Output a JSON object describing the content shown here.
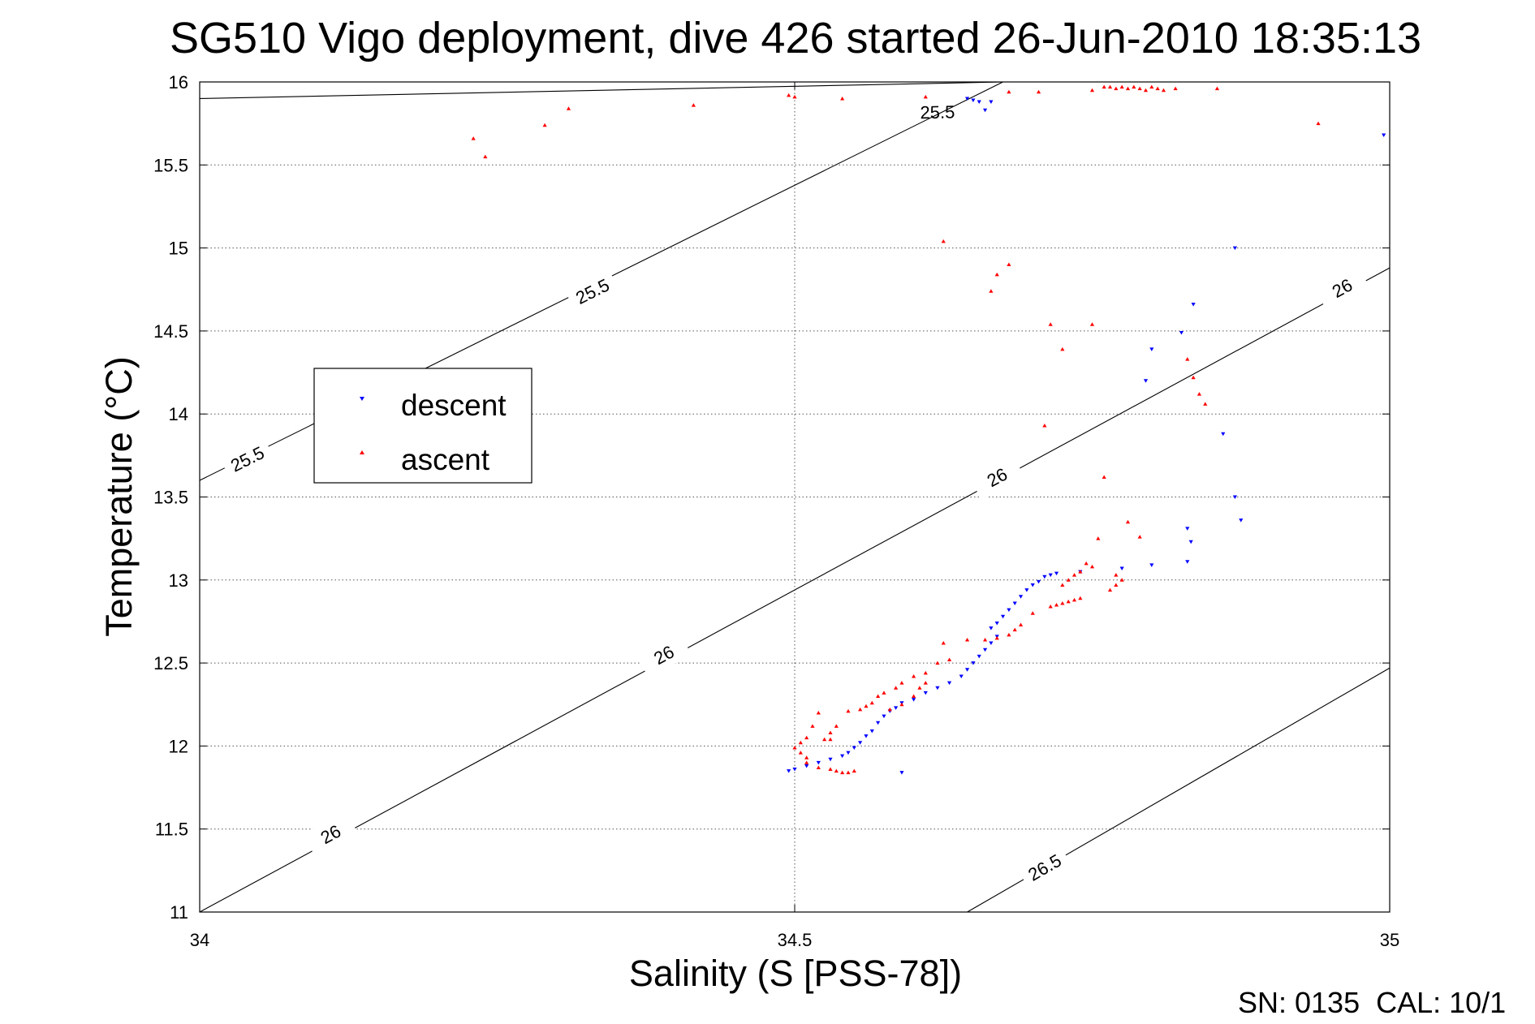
{
  "chart_data": {
    "type": "scatter",
    "title": "SG510 Vigo deployment, dive 426 started 26-Jun-2010 18:35:13",
    "xlabel": "Salinity (S [PSS-78])",
    "ylabel": "Temperature (°C)",
    "xlim": [
      34,
      35
    ],
    "ylim": [
      11,
      16
    ],
    "xticks": [
      "34",
      "34.5",
      "35"
    ],
    "yticks": [
      "11",
      "11.5",
      "12",
      "12.5",
      "13",
      "13.5",
      "14",
      "14.5",
      "15",
      "15.5",
      "16"
    ],
    "grid": "dotted, major ticks",
    "legend_position": "middle-left",
    "footer": "SN: 0135  CAL: 10/1",
    "density_contours": [
      {
        "label": "25.5",
        "start": [
          34.0,
          15.9
        ],
        "end": [
          34.675,
          16.0
        ],
        "labels_at": [
          [
            34.62,
            15.82
          ]
        ]
      },
      {
        "label": "25.5",
        "start": [
          34.0,
          13.6
        ],
        "end": [
          34.675,
          16.0
        ],
        "labels_at": [
          [
            34.04,
            13.73
          ],
          [
            34.33,
            14.74
          ]
        ]
      },
      {
        "label": "26",
        "start": [
          34.0,
          11.0
        ],
        "end": [
          35.0,
          14.88
        ],
        "labels_at": [
          [
            34.11,
            11.47
          ],
          [
            34.39,
            12.55
          ],
          [
            34.67,
            13.62
          ],
          [
            34.96,
            14.76
          ]
        ]
      },
      {
        "label": "26.5",
        "start": [
          34.645,
          11.0
        ],
        "end": [
          35.0,
          12.47
        ],
        "labels_at": [
          [
            34.71,
            11.27
          ]
        ]
      }
    ],
    "series": [
      {
        "name": "descent",
        "color": "#0000ff",
        "marker": "triangle-down",
        "points": [
          [
            34.645,
            15.9
          ],
          [
            34.65,
            15.89
          ],
          [
            34.655,
            15.88
          ],
          [
            34.66,
            15.83
          ],
          [
            34.665,
            15.88
          ],
          [
            34.995,
            15.68
          ],
          [
            34.87,
            15.0
          ],
          [
            34.835,
            14.66
          ],
          [
            34.825,
            14.49
          ],
          [
            34.8,
            14.39
          ],
          [
            34.795,
            14.2
          ],
          [
            34.86,
            13.88
          ],
          [
            34.87,
            13.5
          ],
          [
            34.875,
            13.36
          ],
          [
            34.83,
            13.31
          ],
          [
            34.833,
            13.23
          ],
          [
            34.83,
            13.11
          ],
          [
            34.8,
            13.09
          ],
          [
            34.775,
            13.07
          ],
          [
            34.74,
            13.05
          ],
          [
            34.72,
            13.04
          ],
          [
            34.715,
            13.03
          ],
          [
            34.71,
            13.02
          ],
          [
            34.705,
            12.99
          ],
          [
            34.7,
            12.97
          ],
          [
            34.695,
            12.94
          ],
          [
            34.69,
            12.9
          ],
          [
            34.685,
            12.86
          ],
          [
            34.68,
            12.82
          ],
          [
            34.675,
            12.78
          ],
          [
            34.67,
            12.74
          ],
          [
            34.665,
            12.71
          ],
          [
            34.67,
            12.66
          ],
          [
            34.665,
            12.62
          ],
          [
            34.66,
            12.58
          ],
          [
            34.655,
            12.54
          ],
          [
            34.65,
            12.5
          ],
          [
            34.645,
            12.46
          ],
          [
            34.64,
            12.42
          ],
          [
            34.63,
            12.38
          ],
          [
            34.62,
            12.35
          ],
          [
            34.61,
            12.32
          ],
          [
            34.6,
            12.28
          ],
          [
            34.59,
            12.26
          ],
          [
            34.585,
            12.23
          ],
          [
            34.58,
            12.21
          ],
          [
            34.575,
            12.18
          ],
          [
            34.57,
            12.14
          ],
          [
            34.565,
            12.09
          ],
          [
            34.56,
            12.06
          ],
          [
            34.555,
            12.02
          ],
          [
            34.55,
            11.99
          ],
          [
            34.545,
            11.96
          ],
          [
            34.54,
            11.94
          ],
          [
            34.53,
            11.92
          ],
          [
            34.52,
            11.9
          ],
          [
            34.51,
            11.88
          ],
          [
            34.5,
            11.86
          ],
          [
            34.495,
            11.85
          ],
          [
            34.59,
            11.84
          ]
        ]
      },
      {
        "name": "ascent",
        "color": "#ff0000",
        "marker": "triangle-up",
        "points": [
          [
            34.23,
            15.66
          ],
          [
            34.24,
            15.55
          ],
          [
            34.29,
            15.74
          ],
          [
            34.31,
            15.84
          ],
          [
            34.415,
            15.86
          ],
          [
            34.495,
            15.92
          ],
          [
            34.5,
            15.91
          ],
          [
            34.54,
            15.9
          ],
          [
            34.61,
            15.91
          ],
          [
            34.68,
            15.94
          ],
          [
            34.705,
            15.94
          ],
          [
            34.75,
            15.95
          ],
          [
            34.76,
            15.97
          ],
          [
            34.765,
            15.97
          ],
          [
            34.77,
            15.96
          ],
          [
            34.775,
            15.97
          ],
          [
            34.78,
            15.96
          ],
          [
            34.785,
            15.97
          ],
          [
            34.79,
            15.96
          ],
          [
            34.795,
            15.95
          ],
          [
            34.8,
            15.97
          ],
          [
            34.805,
            15.96
          ],
          [
            34.81,
            15.95
          ],
          [
            34.82,
            15.96
          ],
          [
            34.855,
            15.96
          ],
          [
            34.94,
            15.75
          ],
          [
            34.625,
            15.04
          ],
          [
            34.665,
            14.74
          ],
          [
            34.67,
            14.84
          ],
          [
            34.68,
            14.9
          ],
          [
            34.715,
            14.54
          ],
          [
            34.725,
            14.39
          ],
          [
            34.75,
            14.54
          ],
          [
            34.83,
            14.33
          ],
          [
            34.835,
            14.22
          ],
          [
            34.84,
            14.12
          ],
          [
            34.845,
            14.06
          ],
          [
            34.71,
            13.93
          ],
          [
            34.76,
            13.62
          ],
          [
            34.78,
            13.35
          ],
          [
            34.79,
            13.26
          ],
          [
            34.755,
            13.25
          ],
          [
            34.745,
            13.1
          ],
          [
            34.75,
            13.08
          ],
          [
            34.74,
            13.05
          ],
          [
            34.735,
            13.03
          ],
          [
            34.73,
            13.0
          ],
          [
            34.725,
            12.97
          ],
          [
            34.77,
            13.03
          ],
          [
            34.775,
            13.0
          ],
          [
            34.77,
            12.97
          ],
          [
            34.765,
            12.94
          ],
          [
            34.74,
            12.89
          ],
          [
            34.735,
            12.88
          ],
          [
            34.73,
            12.87
          ],
          [
            34.725,
            12.86
          ],
          [
            34.72,
            12.85
          ],
          [
            34.715,
            12.84
          ],
          [
            34.7,
            12.8
          ],
          [
            34.69,
            12.73
          ],
          [
            34.685,
            12.7
          ],
          [
            34.68,
            12.67
          ],
          [
            34.67,
            12.65
          ],
          [
            34.66,
            12.64
          ],
          [
            34.645,
            12.64
          ],
          [
            34.625,
            12.62
          ],
          [
            34.63,
            12.52
          ],
          [
            34.62,
            12.5
          ],
          [
            34.61,
            12.44
          ],
          [
            34.6,
            12.42
          ],
          [
            34.59,
            12.38
          ],
          [
            34.585,
            12.35
          ],
          [
            34.575,
            12.32
          ],
          [
            34.57,
            12.3
          ],
          [
            34.565,
            12.26
          ],
          [
            34.56,
            12.24
          ],
          [
            34.555,
            12.22
          ],
          [
            34.545,
            12.21
          ],
          [
            34.535,
            12.12
          ],
          [
            34.53,
            12.08
          ],
          [
            34.525,
            12.04
          ],
          [
            34.58,
            12.22
          ],
          [
            34.59,
            12.25
          ],
          [
            34.6,
            12.3
          ],
          [
            34.605,
            12.35
          ],
          [
            34.61,
            12.38
          ],
          [
            34.53,
            12.04
          ],
          [
            34.52,
            12.2
          ],
          [
            34.515,
            12.12
          ],
          [
            34.51,
            12.05
          ],
          [
            34.505,
            12.02
          ],
          [
            34.5,
            11.99
          ],
          [
            34.505,
            11.96
          ],
          [
            34.51,
            11.93
          ],
          [
            34.51,
            11.9
          ],
          [
            34.52,
            11.87
          ],
          [
            34.53,
            11.86
          ],
          [
            34.535,
            11.85
          ],
          [
            34.54,
            11.84
          ],
          [
            34.545,
            11.84
          ],
          [
            34.55,
            11.85
          ]
        ]
      }
    ]
  }
}
